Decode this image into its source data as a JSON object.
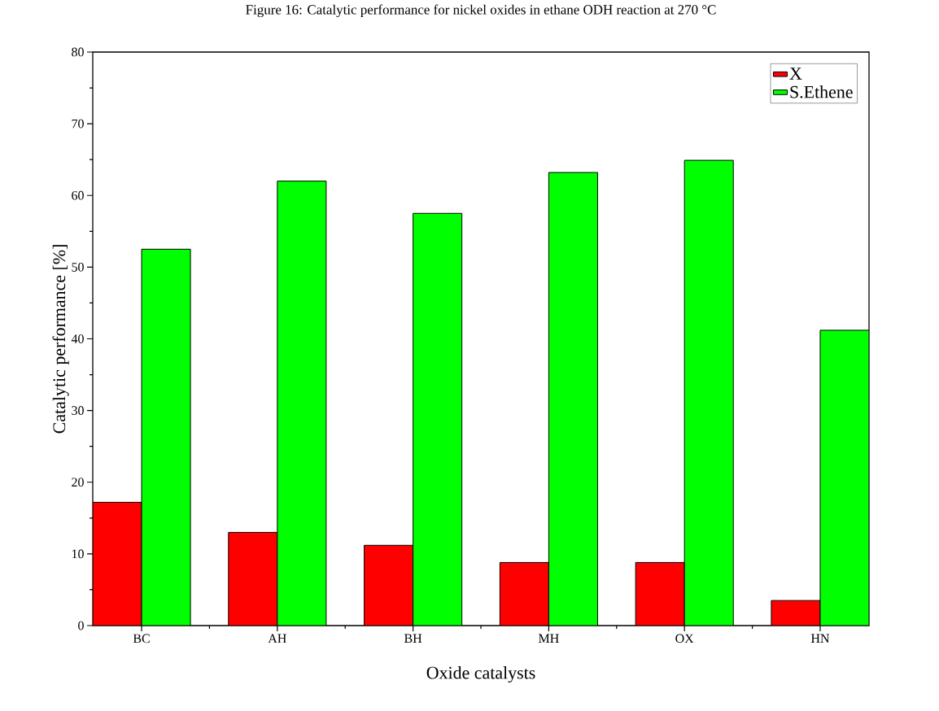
{
  "chart_data": {
    "type": "bar",
    "title": "Figure 16: Catalytic performance for nickel oxides in ethane ODH reaction at 270 °C",
    "xlabel": "Oxide catalysts",
    "ylabel": "Catalytic performance  [%]",
    "categories": [
      "BC",
      "AH",
      "BH",
      "MH",
      "OX",
      "HN"
    ],
    "series": [
      {
        "name": "X",
        "color": "#ff0000",
        "values": [
          17.2,
          13.0,
          11.2,
          8.8,
          8.8,
          3.5
        ]
      },
      {
        "name": "S.Ethene",
        "color": "#00ff00",
        "values": [
          52.5,
          62.0,
          57.5,
          63.2,
          64.9,
          41.2
        ]
      }
    ],
    "ylim": [
      0,
      80
    ],
    "yticks": [
      0,
      10,
      20,
      30,
      40,
      50,
      60,
      70,
      80
    ],
    "grid": false,
    "legend": "top right"
  }
}
